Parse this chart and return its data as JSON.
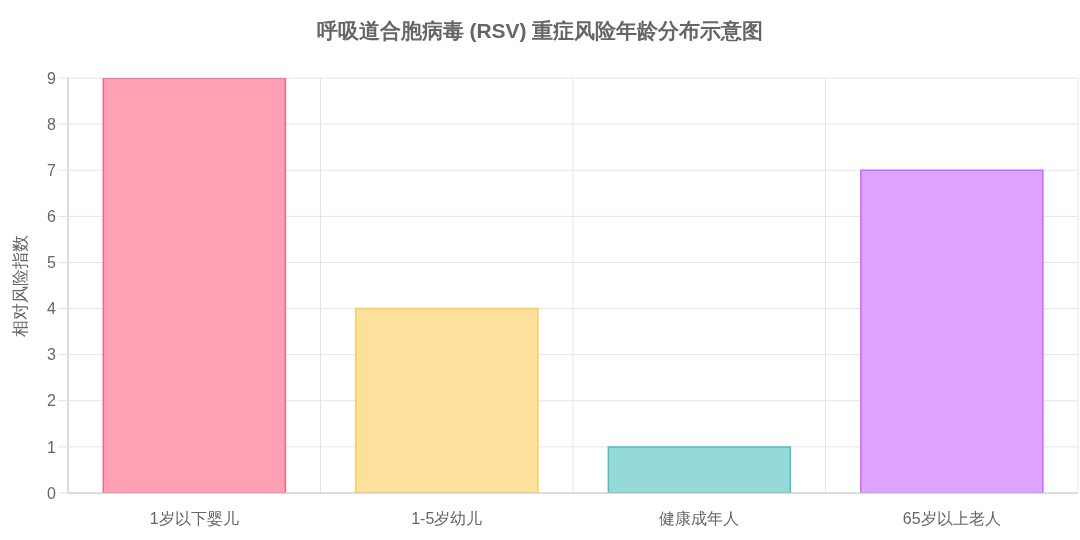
{
  "chart_data": {
    "type": "bar",
    "title": "呼吸道合胞病毒 (RSV) 重症风险年龄分布示意图",
    "ylabel": "相对风险指数",
    "categories": [
      "1岁以下婴儿",
      "1-5岁幼儿",
      "健康成年人",
      "65岁以上老人"
    ],
    "values": [
      9,
      4,
      1,
      7
    ],
    "colors": [
      "#ffa0b4",
      "#fde09b",
      "#95d9d9",
      "#dfa3fe"
    ],
    "ylim": [
      0,
      9
    ],
    "yticks": [
      0,
      1,
      2,
      3,
      4,
      5,
      6,
      7,
      8,
      9
    ],
    "grid": true
  }
}
